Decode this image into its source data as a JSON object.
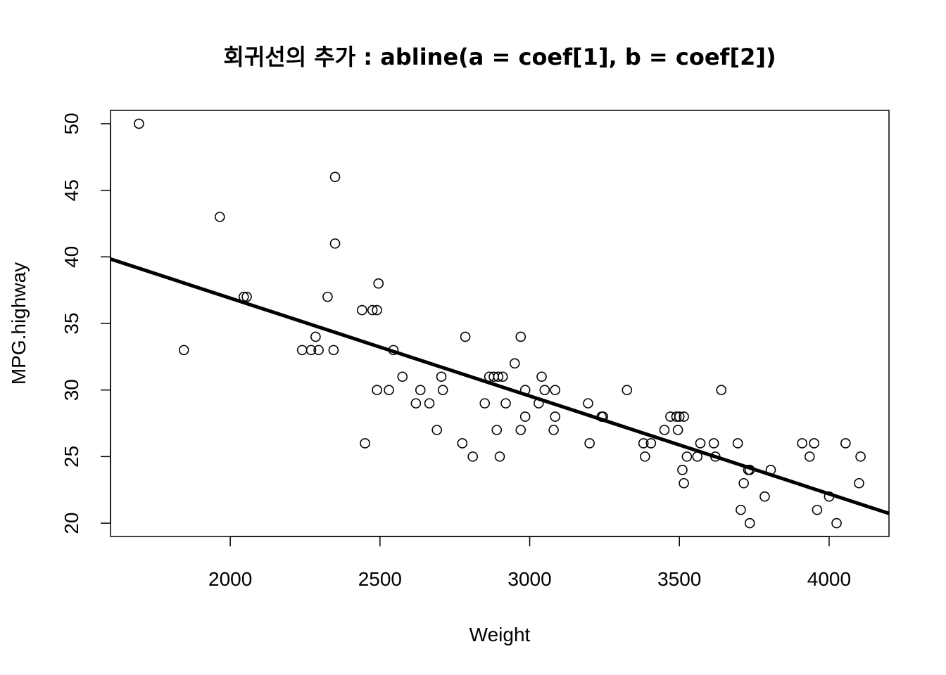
{
  "chart_data": {
    "type": "scatter",
    "title": "회귀선의 추가 : abline(a = coef[1], b = coef[2])",
    "xlabel": "Weight",
    "ylabel": "MPG.highway",
    "xlim": [
      1600,
      4200
    ],
    "ylim": [
      19,
      51
    ],
    "xticks": [
      2000,
      2500,
      3000,
      3500,
      4000
    ],
    "yticks": [
      20,
      25,
      30,
      35,
      40,
      45,
      50
    ],
    "grid": false,
    "regression_line": {
      "intercept": 51.6,
      "slope": -0.00735
    },
    "points": [
      [
        1695,
        50
      ],
      [
        1845,
        33
      ],
      [
        1965,
        43
      ],
      [
        2045,
        37
      ],
      [
        2055,
        37
      ],
      [
        2240,
        33
      ],
      [
        2270,
        33
      ],
      [
        2285,
        34
      ],
      [
        2295,
        33
      ],
      [
        2325,
        37
      ],
      [
        2345,
        33
      ],
      [
        2350,
        46
      ],
      [
        2350,
        41
      ],
      [
        2440,
        36
      ],
      [
        2450,
        26
      ],
      [
        2475,
        36
      ],
      [
        2490,
        36
      ],
      [
        2490,
        30
      ],
      [
        2495,
        38
      ],
      [
        2530,
        30
      ],
      [
        2545,
        33
      ],
      [
        2575,
        31
      ],
      [
        2620,
        29
      ],
      [
        2635,
        30
      ],
      [
        2665,
        29
      ],
      [
        2690,
        27
      ],
      [
        2705,
        31
      ],
      [
        2710,
        30
      ],
      [
        2775,
        26
      ],
      [
        2785,
        34
      ],
      [
        2810,
        25
      ],
      [
        2850,
        29
      ],
      [
        2865,
        31
      ],
      [
        2880,
        31
      ],
      [
        2890,
        27
      ],
      [
        2895,
        31
      ],
      [
        2900,
        25
      ],
      [
        2910,
        31
      ],
      [
        2920,
        29
      ],
      [
        2950,
        32
      ],
      [
        2970,
        34
      ],
      [
        2970,
        27
      ],
      [
        2985,
        30
      ],
      [
        2985,
        28
      ],
      [
        3030,
        29
      ],
      [
        3040,
        31
      ],
      [
        3050,
        30
      ],
      [
        3080,
        27
      ],
      [
        3085,
        30
      ],
      [
        3085,
        28
      ],
      [
        3195,
        29
      ],
      [
        3200,
        26
      ],
      [
        3240,
        28
      ],
      [
        3245,
        28
      ],
      [
        3325,
        30
      ],
      [
        3380,
        26
      ],
      [
        3385,
        25
      ],
      [
        3405,
        26
      ],
      [
        3450,
        27
      ],
      [
        3470,
        28
      ],
      [
        3490,
        28
      ],
      [
        3495,
        27
      ],
      [
        3500,
        28
      ],
      [
        3510,
        24
      ],
      [
        3515,
        23
      ],
      [
        3515,
        28
      ],
      [
        3525,
        25
      ],
      [
        3560,
        25
      ],
      [
        3570,
        26
      ],
      [
        3615,
        26
      ],
      [
        3620,
        25
      ],
      [
        3640,
        30
      ],
      [
        3695,
        26
      ],
      [
        3705,
        21
      ],
      [
        3715,
        23
      ],
      [
        3730,
        24
      ],
      [
        3735,
        24
      ],
      [
        3735,
        20
      ],
      [
        3785,
        22
      ],
      [
        3805,
        24
      ],
      [
        3910,
        26
      ],
      [
        3935,
        25
      ],
      [
        3950,
        26
      ],
      [
        3960,
        21
      ],
      [
        4000,
        22
      ],
      [
        4025,
        20
      ],
      [
        4055,
        26
      ],
      [
        4100,
        23
      ],
      [
        4105,
        25
      ]
    ]
  }
}
